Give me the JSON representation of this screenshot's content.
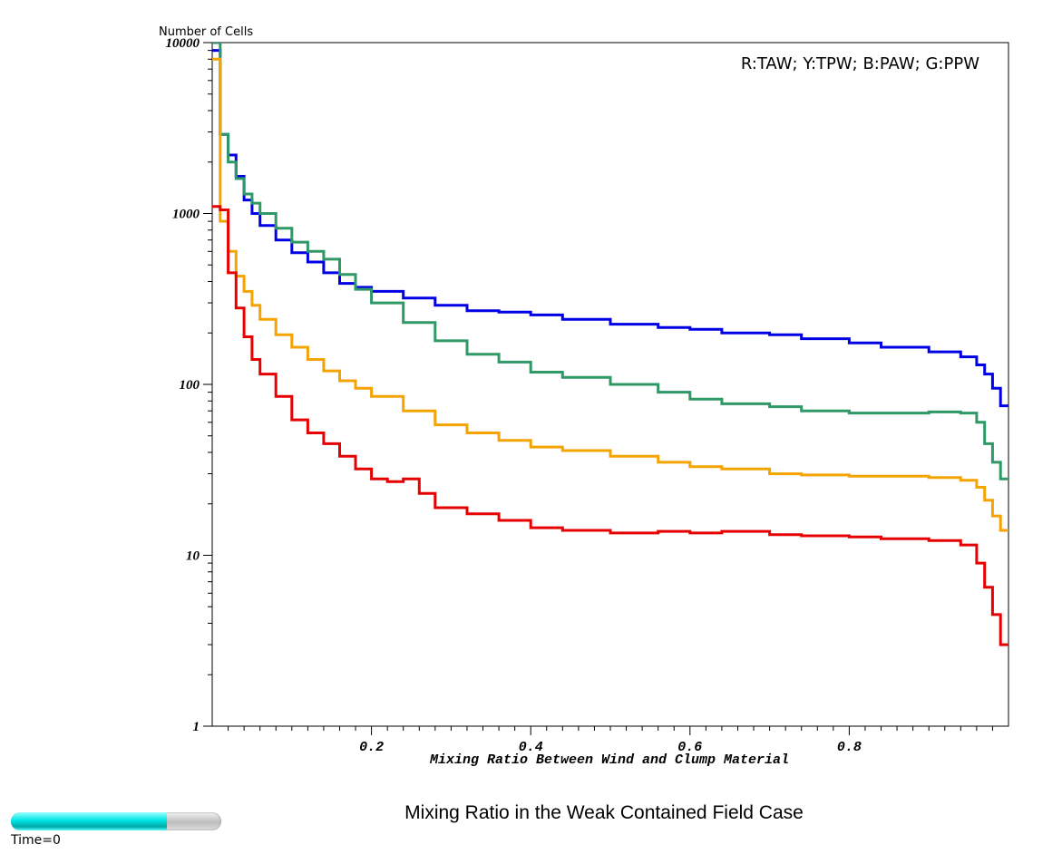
{
  "chart_data": {
    "type": "line",
    "step": true,
    "title": "Mixing Ratio in the Weak Contained Field Case",
    "xlabel": "Mixing Ratio Between Wind and Clump Material",
    "ylabel": "Number of Cells",
    "legend": "R:TAW; Y:TPW; B:PAW; G:PPW",
    "legend_position": "top-right",
    "yscale": "log",
    "xlim": [
      0.0,
      1.0
    ],
    "ylim": [
      1,
      10000
    ],
    "grid": false,
    "xticks": [
      0.2,
      0.4,
      0.6,
      0.8
    ],
    "xtick_labels": [
      "0.2",
      "0.4",
      "0.6",
      "0.8"
    ],
    "yticks": [
      1,
      10,
      100,
      1000,
      10000
    ],
    "ytick_labels": [
      "1",
      "10",
      "100",
      "1000",
      "10000"
    ],
    "series": [
      {
        "color": "#0000e6",
        "x": [
          0.0,
          0.01,
          0.02,
          0.03,
          0.04,
          0.05,
          0.06,
          0.08,
          0.1,
          0.12,
          0.14,
          0.16,
          0.18,
          0.2,
          0.24,
          0.28,
          0.32,
          0.36,
          0.4,
          0.44,
          0.5,
          0.56,
          0.6,
          0.64,
          0.7,
          0.74,
          0.8,
          0.84,
          0.9,
          0.94,
          0.96,
          0.97,
          0.98,
          0.99,
          1.0
        ],
        "y": [
          9000,
          2900,
          2200,
          1650,
          1200,
          1000,
          850,
          700,
          590,
          520,
          450,
          390,
          370,
          350,
          320,
          290,
          270,
          265,
          255,
          240,
          225,
          215,
          210,
          200,
          195,
          185,
          175,
          165,
          155,
          145,
          130,
          115,
          95,
          75,
          75
        ]
      },
      {
        "color": "#2e9866",
        "x": [
          0.0,
          0.01,
          0.02,
          0.03,
          0.04,
          0.05,
          0.06,
          0.08,
          0.1,
          0.12,
          0.14,
          0.16,
          0.18,
          0.2,
          0.24,
          0.28,
          0.32,
          0.36,
          0.4,
          0.44,
          0.5,
          0.56,
          0.6,
          0.64,
          0.7,
          0.74,
          0.8,
          0.84,
          0.9,
          0.94,
          0.96,
          0.97,
          0.98,
          0.99,
          1.0
        ],
        "y": [
          10000,
          2900,
          2000,
          1600,
          1300,
          1150,
          1000,
          820,
          680,
          600,
          540,
          440,
          360,
          300,
          230,
          180,
          150,
          135,
          118,
          110,
          100,
          90,
          82,
          77,
          74,
          70,
          68,
          68,
          69,
          68,
          60,
          45,
          35,
          28,
          28
        ]
      },
      {
        "color": "#f5a300",
        "x": [
          0.0,
          0.01,
          0.02,
          0.03,
          0.04,
          0.05,
          0.06,
          0.08,
          0.1,
          0.12,
          0.14,
          0.16,
          0.18,
          0.2,
          0.24,
          0.28,
          0.32,
          0.36,
          0.4,
          0.44,
          0.5,
          0.56,
          0.6,
          0.64,
          0.7,
          0.74,
          0.8,
          0.84,
          0.9,
          0.94,
          0.96,
          0.97,
          0.98,
          0.99,
          1.0
        ],
        "y": [
          8000,
          900,
          600,
          430,
          350,
          290,
          240,
          195,
          165,
          140,
          120,
          105,
          95,
          85,
          70,
          58,
          52,
          47,
          43,
          41,
          38,
          35,
          33,
          32,
          30,
          29.5,
          29,
          29,
          28.5,
          27.5,
          25,
          21,
          17,
          14,
          14
        ]
      },
      {
        "color": "#e60000",
        "x": [
          0.0,
          0.01,
          0.02,
          0.03,
          0.04,
          0.05,
          0.06,
          0.08,
          0.1,
          0.12,
          0.14,
          0.16,
          0.18,
          0.2,
          0.22,
          0.24,
          0.26,
          0.28,
          0.32,
          0.36,
          0.4,
          0.44,
          0.5,
          0.56,
          0.6,
          0.64,
          0.7,
          0.74,
          0.8,
          0.84,
          0.9,
          0.94,
          0.96,
          0.97,
          0.98,
          0.99,
          1.0
        ],
        "y": [
          1100,
          1050,
          450,
          280,
          190,
          140,
          115,
          85,
          62,
          52,
          45,
          38,
          32,
          28,
          27,
          28,
          23,
          19,
          17.5,
          16,
          14.5,
          14,
          13.5,
          13.8,
          13.5,
          13.8,
          13.2,
          13.0,
          12.8,
          12.5,
          12.2,
          11.5,
          9,
          6.5,
          4.5,
          3,
          3
        ]
      }
    ]
  },
  "time_slider": {
    "label": "Time=0",
    "value": 0.74
  }
}
